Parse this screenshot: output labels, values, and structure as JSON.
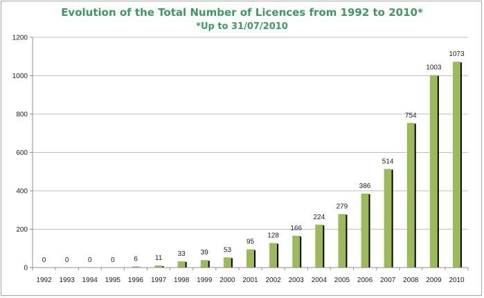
{
  "chart_data": {
    "type": "bar",
    "title": "Evolution of the Total Number of Licences from 1992 to 2010*",
    "subtitle": "*Up to 31/07/2010",
    "categories": [
      "1992",
      "1993",
      "1994",
      "1995",
      "1996",
      "1997",
      "1998",
      "1999",
      "2000",
      "2001",
      "2002",
      "2003",
      "2004",
      "2005",
      "2006",
      "2007",
      "2008",
      "2009",
      "2010"
    ],
    "values": [
      0,
      0,
      0,
      0,
      6,
      11,
      33,
      39,
      53,
      95,
      128,
      166,
      224,
      279,
      386,
      514,
      754,
      1003,
      1073
    ],
    "ylim": [
      0,
      1200
    ],
    "yticks": [
      0,
      200,
      400,
      600,
      800,
      1000,
      1200
    ],
    "grid": true,
    "legend": "none",
    "colors": {
      "bar": "#9bbb59",
      "bar_shadow": "#000000",
      "grid": "#bfbfbf",
      "axis": "#8c8c8c",
      "title": "#3a9b5c"
    }
  }
}
